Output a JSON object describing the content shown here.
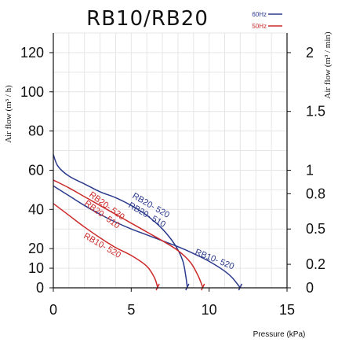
{
  "chart_data": {
    "type": "line",
    "title": "RB10/RB20",
    "xlabel": "Pressure (kPa)",
    "ylabel": "Air flow (m³ / h)",
    "ylabel_right": "Air flow (m³ / min)",
    "xlim": [
      0,
      15
    ],
    "ylim": [
      0,
      130
    ],
    "x_ticks": [
      "0",
      "5",
      "10",
      "15"
    ],
    "y_ticks": [
      "0",
      "10",
      "20",
      "40",
      "60",
      "80",
      "100",
      "120"
    ],
    "y_ticks_right": [
      "0",
      "0.2",
      "0.5",
      "0.8",
      "1",
      "1.5",
      "2"
    ],
    "grid": true,
    "legend": [
      {
        "name": "60Hz",
        "color": "#2b3a8c"
      },
      {
        "name": "50Hz",
        "color": "#cc2a2a"
      }
    ],
    "series": [
      {
        "name": "RB10- 520",
        "freq": "60Hz",
        "color": "#2b3a8c",
        "x": [
          0,
          1,
          2,
          3,
          4,
          5,
          6,
          7,
          8,
          9,
          10,
          11,
          11.5,
          12
        ],
        "y": [
          52,
          47,
          42,
          37.5,
          33.5,
          30,
          27,
          24,
          21,
          17.5,
          13.5,
          8.5,
          5,
          0
        ]
      },
      {
        "name": "RB10- 520",
        "freq": "50Hz",
        "color": "#cc2a2a",
        "x": [
          0,
          1,
          2,
          3,
          4,
          5,
          6,
          6.5,
          6.7
        ],
        "y": [
          43,
          37,
          31,
          25.5,
          20.5,
          16.5,
          11,
          5,
          0
        ]
      },
      {
        "name": "RB20- 520",
        "freq": "60Hz",
        "color": "#2b3a8c",
        "x": [
          0,
          0.3,
          1,
          2,
          3,
          4,
          5,
          6,
          7,
          7.8,
          8.3,
          8.5,
          8.6
        ],
        "y": [
          68,
          62,
          57,
          53,
          49,
          46,
          42,
          37,
          30,
          22,
          14,
          6,
          0
        ]
      },
      {
        "name": "RB20- 510",
        "freq": "50Hz",
        "color": "#cc2a2a",
        "x": [
          0,
          1,
          2,
          3,
          4,
          5,
          6,
          7,
          8,
          8.8,
          9.3,
          9.6
        ],
        "y": [
          55,
          51,
          46.5,
          42,
          37.5,
          33,
          28.5,
          24,
          19,
          13,
          6,
          0
        ]
      }
    ],
    "curve_labels": [
      "RB20- 520",
      "RB20- 510",
      "RB20- 520",
      "RB20- 510",
      "RB10- 520",
      "RB10- 520"
    ]
  }
}
